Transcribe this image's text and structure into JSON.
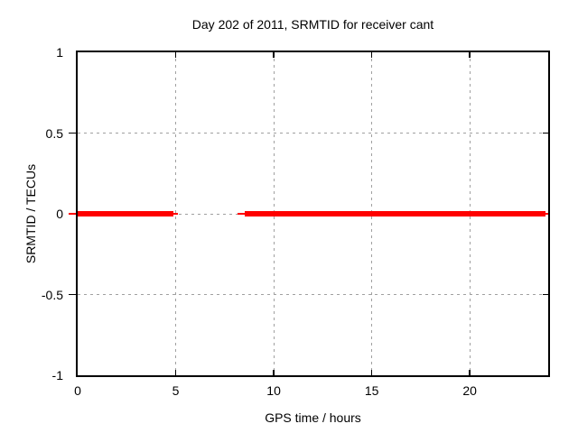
{
  "chart_data": {
    "type": "line",
    "title": "Day 202 of 2011, SRMTID for receiver cant",
    "xlabel": "GPS time / hours",
    "ylabel": "SRMTID / TECUs",
    "xlim": [
      0,
      24
    ],
    "ylim": [
      -1,
      1
    ],
    "grid": true,
    "legend_position": "none",
    "background_color": "#ffffff",
    "grid_color": "#a0a0a0",
    "axis_color": "#000000",
    "text_color": "#000000",
    "xticks": [
      {
        "value": 0,
        "label": "0"
      },
      {
        "value": 5,
        "label": "5"
      },
      {
        "value": 10,
        "label": "10"
      },
      {
        "value": 15,
        "label": "15"
      },
      {
        "value": 20,
        "label": "20"
      }
    ],
    "yticks": [
      {
        "value": 1,
        "label": "1"
      },
      {
        "value": 0.5,
        "label": "0.5"
      },
      {
        "value": 0,
        "label": "0"
      },
      {
        "value": -0.5,
        "label": "-0.5"
      },
      {
        "value": -1,
        "label": "-1"
      }
    ],
    "series": [
      {
        "name": "SRMTID for receiver cant",
        "color": "#ff0000",
        "y_value": 0,
        "note": "SRMTID stays at ~0 TECUs (thick band, |y| < 0.03); no data between ~5.1 and ~8.2 hours",
        "segments": [
          {
            "x_start": 0.0,
            "x_end": 4.9,
            "y": 0,
            "style": "thick"
          },
          {
            "x_start": 4.9,
            "x_end": 5.1,
            "y": 0,
            "style": "thin"
          },
          {
            "x_start": 8.15,
            "x_end": 8.5,
            "y": 0,
            "style": "thin"
          },
          {
            "x_start": 8.5,
            "x_end": 23.85,
            "y": 0,
            "style": "thick"
          },
          {
            "x_start": 23.85,
            "x_end": 24.0,
            "y": 0,
            "style": "thin"
          }
        ]
      }
    ]
  }
}
